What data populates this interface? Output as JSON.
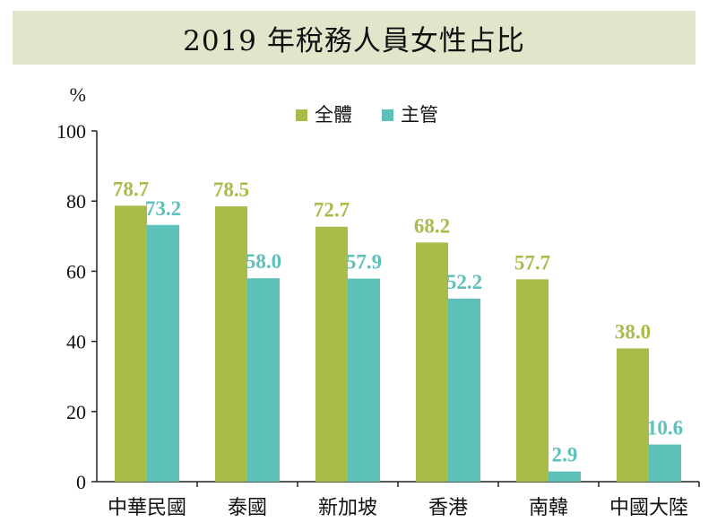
{
  "title": "2019 年稅務人員女性占比",
  "chart_data": {
    "type": "bar",
    "title": "2019 年稅務人員女性占比",
    "ylabel": "%",
    "ylim": [
      0,
      100
    ],
    "yticks": [
      0,
      20,
      40,
      60,
      80,
      100
    ],
    "categories": [
      "中華民國",
      "泰國",
      "新加坡",
      "香港",
      "南韓",
      "中國大陸"
    ],
    "series": [
      {
        "name": "全體",
        "color": "#a9bc4a",
        "values": [
          78.7,
          78.5,
          72.7,
          68.2,
          57.7,
          38.0
        ],
        "labels": [
          "78.7",
          "78.5",
          "72.7",
          "68.2",
          "57.7",
          "38.0"
        ]
      },
      {
        "name": "主管",
        "color": "#5ec1b9",
        "values": [
          73.2,
          58.0,
          57.9,
          52.2,
          2.9,
          10.6
        ],
        "labels": [
          "73.2",
          "58.0",
          "57.9",
          "52.2",
          "2.9",
          "10.6"
        ]
      }
    ],
    "legend": "top-center",
    "grid": false
  }
}
